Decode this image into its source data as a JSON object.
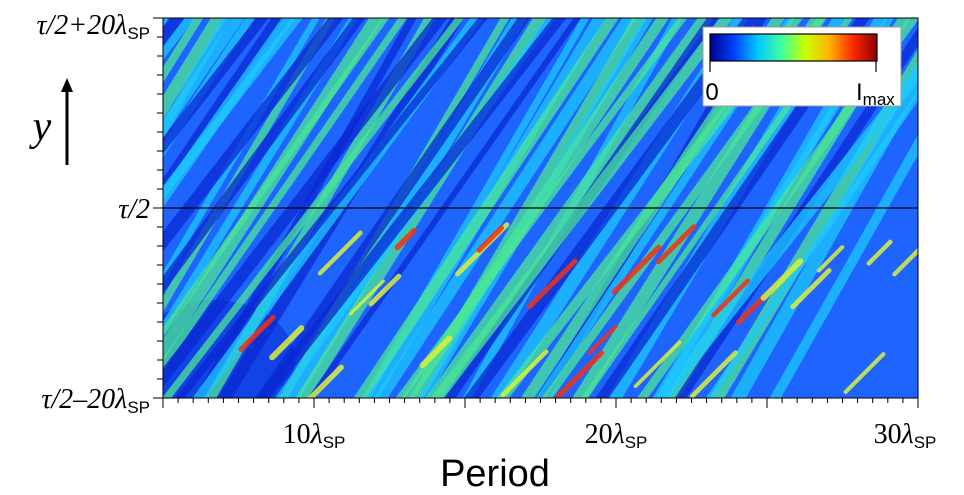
{
  "chart_data": {
    "type": "heatmap",
    "title": "",
    "xlabel": "Period",
    "ylabel": "y",
    "x_range": [
      5,
      30
    ],
    "x_ticks": [
      {
        "value": 10,
        "label": "10",
        "sym": "λ",
        "sub": "SP"
      },
      {
        "value": 20,
        "label": "20",
        "sym": "λ",
        "sub": "SP"
      },
      {
        "value": 30,
        "label": "30",
        "sym": "λ",
        "sub": "SP"
      }
    ],
    "y_range": [
      -20,
      20
    ],
    "y_ticks": [
      {
        "value": 20,
        "label": "τ/2+20",
        "sym": "λ",
        "sub": "SP"
      },
      {
        "value": 0,
        "label": "τ/2",
        "sym": "",
        "sub": ""
      },
      {
        "value": -20,
        "label": "τ/2–20",
        "sym": "λ",
        "sub": "SP"
      }
    ],
    "reference_line": {
      "y": 0
    },
    "colorbar": {
      "min_label": "0",
      "max_label": "I",
      "max_sub": "max",
      "colormap": [
        "#00008c",
        "#0040ff",
        "#00c8ff",
        "#40ffa0",
        "#c8ff00",
        "#ffb400",
        "#ff2800",
        "#8c0000"
      ]
    },
    "field_colors": {
      "dark": "#0a28d2",
      "blue": "#1e64ff",
      "cyan": "#1ec8ff",
      "green": "#4be696",
      "yellow": "#dcf03c",
      "red": "#f03214"
    }
  }
}
